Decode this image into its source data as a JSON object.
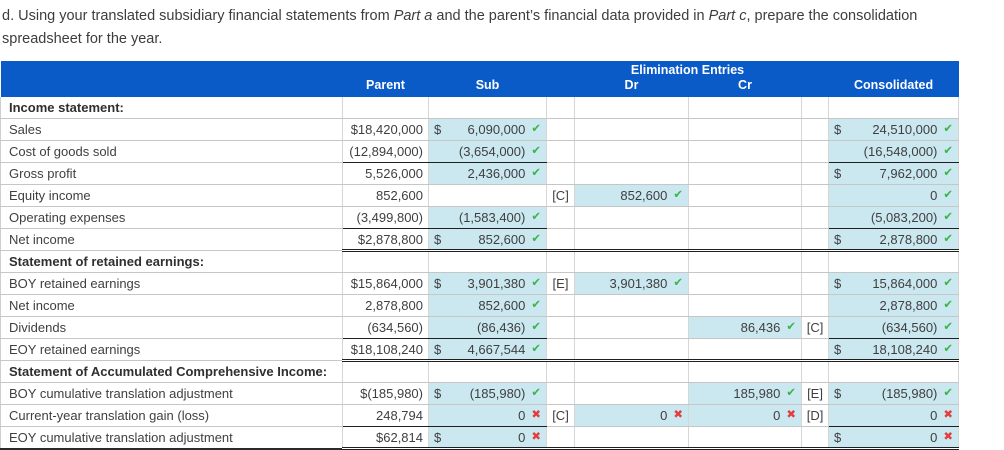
{
  "instruction": {
    "seg1": "d. Using your translated subsidiary financial statements from ",
    "part_a": "Part a",
    "seg3": " and the parent’s financial data provided in ",
    "part_c": "Part c",
    "seg5": ", prepare the consolidation spreadsheet for the year."
  },
  "table": {
    "colors": {
      "header_bg": "#0a5ac8",
      "cell_bg": "#cbe7ef",
      "check": "#3ab54a",
      "cross": "#e23d3d"
    },
    "header": {
      "elimination": "Elimination Entries",
      "parent": "Parent",
      "sub": "Sub",
      "dr": "Dr",
      "cr": "Cr",
      "consolidated": "Consolidated"
    },
    "rows": [
      {
        "kind": "section",
        "label": "Income statement:"
      },
      {
        "kind": "data",
        "label": "Sales",
        "parent": "$18,420,000",
        "sub": {
          "d": "$",
          "v": "6,090,000",
          "m": "check"
        },
        "drl": "",
        "dr": null,
        "cr": null,
        "crl": "",
        "cons": {
          "d": "$",
          "v": "24,510,000",
          "m": "check"
        },
        "ul": null
      },
      {
        "kind": "data",
        "label": "Cost of goods sold",
        "parent": "(12,894,000)",
        "sub": {
          "v": "(3,654,000)",
          "m": "check"
        },
        "drl": "",
        "dr": null,
        "cr": null,
        "crl": "",
        "cons": {
          "v": "(16,548,000)",
          "m": "check"
        },
        "ul": "single"
      },
      {
        "kind": "data",
        "label": "Gross profit",
        "parent": "5,526,000",
        "sub": {
          "v": "2,436,000",
          "m": "check"
        },
        "drl": "",
        "dr": null,
        "cr": null,
        "crl": "",
        "cons": {
          "d": "$",
          "v": "7,962,000",
          "m": "check"
        },
        "ul": null
      },
      {
        "kind": "data",
        "label": "Equity income",
        "parent": "852,600",
        "sub": null,
        "drl": "[C]",
        "dr": {
          "v": "852,600",
          "m": "check"
        },
        "cr": null,
        "crl": "",
        "cons": {
          "v": "0",
          "m": "check"
        },
        "ul": null
      },
      {
        "kind": "data",
        "label": "Operating expenses",
        "parent": "(3,499,800)",
        "sub": {
          "v": "(1,583,400)",
          "m": "check"
        },
        "drl": "",
        "dr": null,
        "cr": null,
        "crl": "",
        "cons": {
          "v": "(5,083,200)",
          "m": "check"
        },
        "ul": "single"
      },
      {
        "kind": "data",
        "label": "Net income",
        "parent": "$2,878,800",
        "sub": {
          "d": "$",
          "v": "852,600",
          "m": "check"
        },
        "drl": "",
        "dr": null,
        "cr": null,
        "crl": "",
        "cons": {
          "d": "$",
          "v": "2,878,800",
          "m": "check"
        },
        "ul": "double"
      },
      {
        "kind": "section",
        "label": "Statement of retained earnings:"
      },
      {
        "kind": "data",
        "label": "BOY retained earnings",
        "parent": "$15,864,000",
        "sub": {
          "d": "$",
          "v": "3,901,380",
          "m": "check"
        },
        "drl": "[E]",
        "dr": {
          "v": "3,901,380",
          "m": "check"
        },
        "cr": null,
        "crl": "",
        "cons": {
          "d": "$",
          "v": "15,864,000",
          "m": "check"
        },
        "ul": null
      },
      {
        "kind": "data",
        "label": "Net income",
        "parent": "2,878,800",
        "sub": {
          "v": "852,600",
          "m": "check"
        },
        "drl": "",
        "dr": null,
        "cr": null,
        "crl": "",
        "cons": {
          "v": "2,878,800",
          "m": "check"
        },
        "ul": null
      },
      {
        "kind": "data",
        "label": "Dividends",
        "parent": "(634,560)",
        "sub": {
          "v": "(86,436)",
          "m": "check"
        },
        "drl": "",
        "dr": null,
        "cr": {
          "v": "86,436",
          "m": "check"
        },
        "crl": "[C]",
        "cons": {
          "v": "(634,560)",
          "m": "check"
        },
        "ul": "single"
      },
      {
        "kind": "data",
        "label": "EOY retained earnings",
        "parent": "$18,108,240",
        "sub": {
          "d": "$",
          "v": "4,667,544",
          "m": "check"
        },
        "drl": "",
        "dr": null,
        "cr": null,
        "crl": "",
        "cons": {
          "d": "$",
          "v": "18,108,240",
          "m": "check"
        },
        "ul": "double"
      },
      {
        "kind": "section",
        "label": "Statement of Accumulated Comprehensive Income:"
      },
      {
        "kind": "data",
        "label": "BOY cumulative translation adjustment",
        "parent": "$(185,980)",
        "sub": {
          "d": "$",
          "v": "(185,980)",
          "m": "check"
        },
        "drl": "",
        "dr": null,
        "cr": {
          "v": "185,980",
          "m": "check"
        },
        "crl": "[E]",
        "cons": {
          "d": "$",
          "v": "(185,980)",
          "m": "check"
        },
        "ul": null
      },
      {
        "kind": "data",
        "label": "Current-year translation gain (loss)",
        "parent": "248,794",
        "sub": {
          "v": "0",
          "m": "cross"
        },
        "drl": "[C]",
        "dr": {
          "v": "0",
          "m": "cross"
        },
        "cr": {
          "v": "0",
          "m": "cross"
        },
        "crl": "[D]",
        "cons": {
          "v": "0",
          "m": "cross"
        },
        "ul": "single"
      },
      {
        "kind": "data",
        "label": "EOY cumulative translation adjustment",
        "parent": "$62,814",
        "sub": {
          "d": "$",
          "v": "0",
          "m": "cross"
        },
        "drl": "",
        "dr": null,
        "cr": null,
        "crl": "",
        "cons": {
          "d": "$",
          "v": "0",
          "m": "cross"
        },
        "ul": "double",
        "last": true
      }
    ]
  }
}
